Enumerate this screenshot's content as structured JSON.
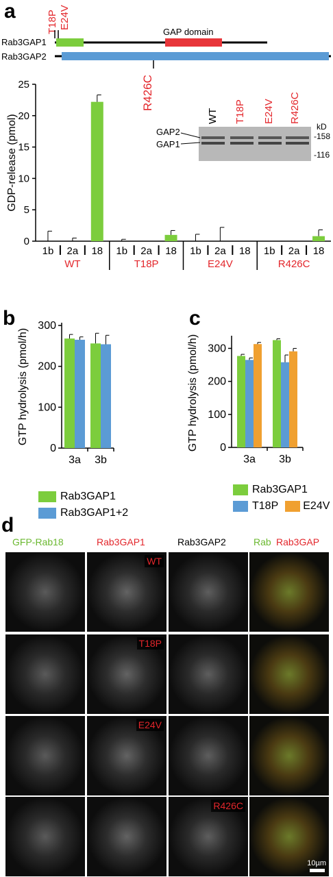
{
  "panel_a": {
    "letter": "a",
    "constructs": [
      "Rab3GAP1",
      "Rab3GAP2"
    ],
    "domain_label": "GAP domain",
    "mutation_labels": [
      "T18P",
      "E24V",
      "R426C"
    ],
    "blot": {
      "lanes": [
        "WT",
        "T18P",
        "E24V",
        "R426C"
      ],
      "bands": [
        "GAP2",
        "GAP1"
      ],
      "unit": "kD",
      "markers": [
        "158",
        "116"
      ]
    }
  },
  "panel_b": {
    "letter": "b",
    "legend": [
      "Rab3GAP1",
      "Rab3GAP1+2"
    ]
  },
  "panel_c": {
    "letter": "c",
    "legend": [
      "Rab3GAP1",
      "T18P",
      "E24V"
    ]
  },
  "panel_d": {
    "letter": "d",
    "headers": [
      "GFP-Rab18",
      "Rab3GAP1",
      "Rab3GAP2",
      "Rab",
      "Rab3GAP"
    ],
    "row_labels": [
      "WT",
      "T18P",
      "E24V",
      "R426C"
    ],
    "scale_bar": "10µm"
  },
  "colors": {
    "green": "#7ccd3d",
    "blue": "#5b9bd5",
    "orange": "#f0a030",
    "red": "#e3262b",
    "gap_domain": "#e8363a"
  },
  "chart_data": [
    {
      "type": "bar",
      "panel": "a",
      "ylabel": "GDP-release (pmol)",
      "ylim": [
        0,
        25
      ],
      "yticks": [
        0,
        5,
        10,
        15,
        20,
        25
      ],
      "groups": [
        "WT",
        "T18P",
        "E24V",
        "R426C"
      ],
      "categories": [
        "1b",
        "2a",
        "18"
      ],
      "values": [
        [
          0.0,
          0.0,
          22.2
        ],
        [
          0.0,
          0.0,
          1.0
        ],
        [
          0.0,
          0.0,
          0.0
        ],
        [
          0.0,
          0.0,
          0.8
        ]
      ],
      "errors": [
        [
          1.6,
          0.5,
          1.1
        ],
        [
          0.3,
          0.0,
          0.7
        ],
        [
          1.1,
          2.2,
          0.0
        ],
        [
          0.0,
          0.0,
          1.0
        ]
      ]
    },
    {
      "type": "bar",
      "panel": "b",
      "ylabel": "GTP hydrolysis (pmol/h)",
      "ylim": [
        0,
        300
      ],
      "yticks": [
        0,
        100,
        200,
        300
      ],
      "categories": [
        "3a",
        "3b"
      ],
      "series": [
        {
          "name": "Rab3GAP1",
          "values": [
            268,
            256
          ],
          "errors": [
            10,
            25
          ]
        },
        {
          "name": "Rab3GAP1+2",
          "values": [
            265,
            254
          ],
          "errors": [
            7,
            22
          ]
        }
      ]
    },
    {
      "type": "bar",
      "panel": "c",
      "ylabel": "GTP hydrolysis (pmol/h)",
      "ylim": [
        0,
        330
      ],
      "yticks": [
        0,
        100,
        200,
        300
      ],
      "categories": [
        "3a",
        "3b"
      ],
      "series": [
        {
          "name": "Rab3GAP1",
          "values": [
            277,
            325
          ],
          "errors": [
            5,
            4
          ]
        },
        {
          "name": "T18P",
          "values": [
            265,
            258
          ],
          "errors": [
            6,
            22
          ]
        },
        {
          "name": "E24V",
          "values": [
            313,
            291
          ],
          "errors": [
            5,
            9
          ]
        }
      ]
    }
  ]
}
